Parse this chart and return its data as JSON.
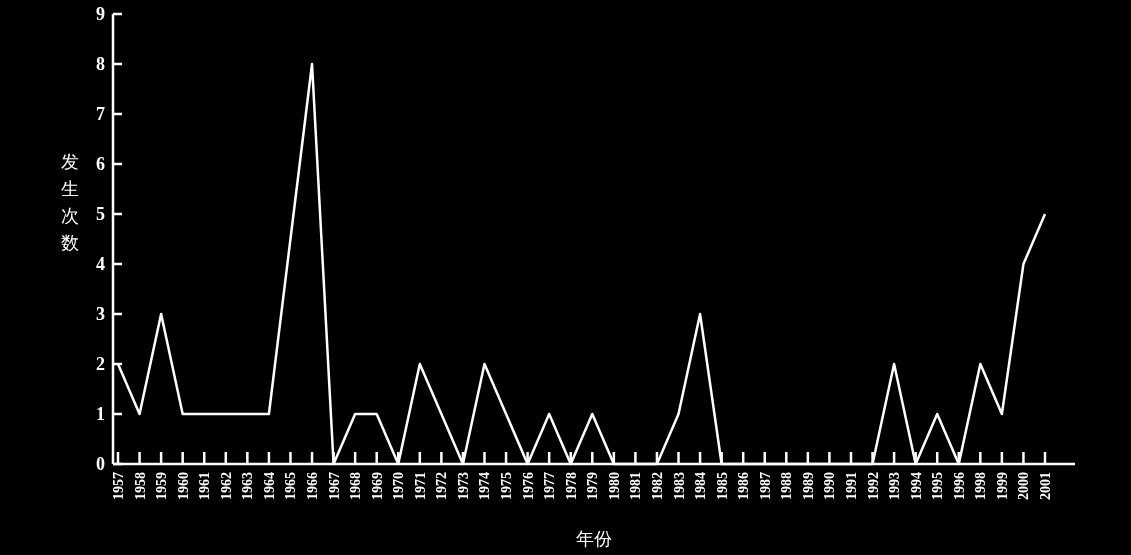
{
  "chart_data": {
    "type": "line",
    "xlabel": "年份",
    "ylabel": "发生次数",
    "categories": [
      "1957",
      "1958",
      "1959",
      "1960",
      "1961",
      "1962",
      "1963",
      "1964",
      "1965",
      "1966",
      "1967",
      "1968",
      "1969",
      "1970",
      "1971",
      "1972",
      "1973",
      "1974",
      "1975",
      "1976",
      "1977",
      "1978",
      "1979",
      "1980",
      "1981",
      "1982",
      "1983",
      "1984",
      "1985",
      "1986",
      "1987",
      "1988",
      "1989",
      "1990",
      "1991",
      "1992",
      "1993",
      "1994",
      "1995",
      "1996",
      "1998",
      "1999",
      "2000",
      "2001"
    ],
    "series": [
      {
        "color": "#ffffff",
        "values": [
          2,
          1,
          3,
          1,
          1,
          1,
          1,
          1,
          4.5,
          8,
          0,
          1,
          1,
          0,
          2,
          1,
          0,
          2,
          1,
          0,
          1,
          0,
          1,
          0,
          0,
          0,
          1,
          3,
          0,
          0,
          0,
          0,
          0,
          0,
          0,
          0,
          2,
          0,
          1,
          0,
          2,
          1,
          4,
          5
        ]
      }
    ],
    "ylim": [
      0,
      9
    ],
    "yticks": [
      0,
      1,
      2,
      3,
      4,
      5,
      6,
      7,
      8,
      9
    ],
    "grid": false,
    "marker": "none",
    "line_style": "solid"
  }
}
